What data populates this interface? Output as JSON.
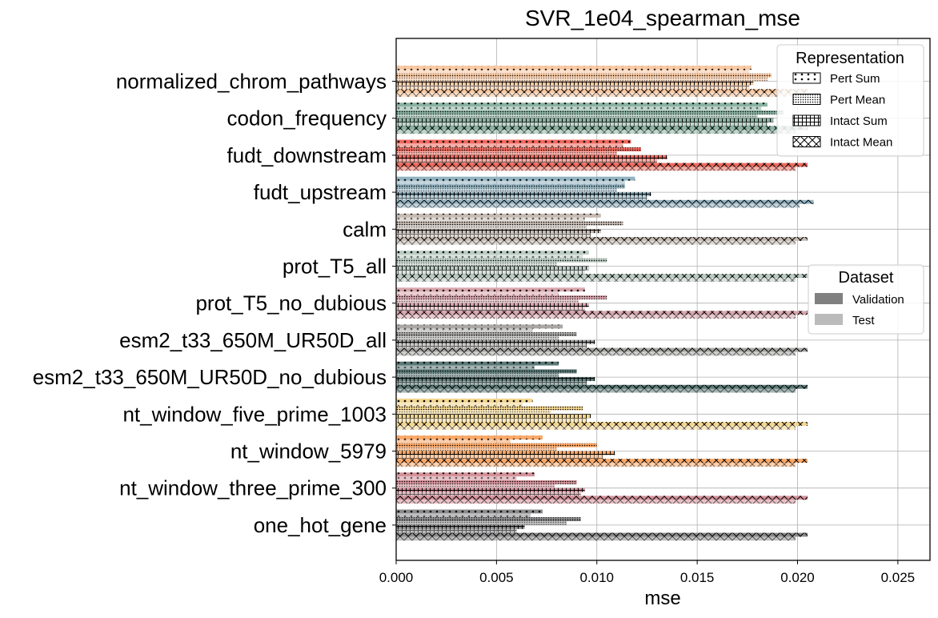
{
  "chart_data": {
    "type": "bar",
    "orientation": "horizontal",
    "title": "SVR_1e04_spearman_mse",
    "xlabel": "mse",
    "ylabel": "",
    "xlim": [
      0,
      0.0266
    ],
    "xticks": [
      "0.000",
      "0.005",
      "0.010",
      "0.015",
      "0.020",
      "0.025"
    ],
    "grid": true,
    "categories": [
      "normalized_chrom_pathways",
      "codon_frequency",
      "fudt_downstream",
      "fudt_upstream",
      "calm",
      "prot_T5_all",
      "prot_T5_no_dubious",
      "esm2_t33_650M_UR50D_all",
      "esm2_t33_650M_UR50D_no_dubious",
      "nt_window_five_prime_1003",
      "nt_window_5979",
      "nt_window_three_prime_300",
      "one_hot_gene"
    ],
    "category_colors": [
      "#f9c9a3",
      "#8ab3a2",
      "#ef6b5f",
      "#92b3c1",
      "#c6bbb3",
      "#b9cbc2",
      "#d8a5ad",
      "#a8a7a5",
      "#5b7a78",
      "#f3d690",
      "#fba867",
      "#d4919a",
      "#8c8a8d"
    ],
    "legend_representation": {
      "title": "Representation",
      "position": "top-right",
      "entries": [
        {
          "name": "Pert Sum",
          "hatch": "dots"
        },
        {
          "name": "Pert Mean",
          "hatch": "dense-dots"
        },
        {
          "name": "Intact Sum",
          "hatch": "grid"
        },
        {
          "name": "Intact Mean",
          "hatch": "crosshatch"
        }
      ]
    },
    "legend_dataset": {
      "title": "Dataset",
      "position": "center-right",
      "entries": [
        {
          "name": "Validation",
          "color": "#808080"
        },
        {
          "name": "Test",
          "color": "#bbbbbb"
        }
      ]
    },
    "series": [
      {
        "representation": "Pert Sum",
        "dataset": "Validation",
        "values": [
          0.0177,
          0.0185,
          0.0117,
          0.0119,
          0.0102,
          0.0096,
          0.0094,
          0.0083,
          0.0081,
          0.0068,
          0.0073,
          0.0069,
          0.0073
        ]
      },
      {
        "representation": "Pert Sum",
        "dataset": "Test",
        "values": [
          0.0176,
          0.0182,
          0.0113,
          0.0114,
          0.0094,
          0.0093,
          0.0081,
          0.0068,
          0.0069,
          0.0063,
          0.0057,
          0.006,
          0.0067
        ]
      },
      {
        "representation": "Pert Mean",
        "dataset": "Validation",
        "values": [
          0.0187,
          0.0193,
          0.0122,
          0.0114,
          0.0113,
          0.0105,
          0.0105,
          0.009,
          0.009,
          0.0093,
          0.01,
          0.009,
          0.0092
        ]
      },
      {
        "representation": "Pert Mean",
        "dataset": "Test",
        "values": [
          0.0185,
          0.018,
          0.011,
          0.011,
          0.0095,
          0.008,
          0.0091,
          0.0081,
          0.0081,
          0.0077,
          0.008,
          0.0079,
          0.0085
        ]
      },
      {
        "representation": "Intact Sum",
        "dataset": "Validation",
        "values": [
          0.0178,
          0.0188,
          0.0135,
          0.0127,
          0.0102,
          0.0096,
          0.0096,
          0.0099,
          0.0099,
          0.0097,
          0.0109,
          0.0094,
          0.0064
        ]
      },
      {
        "representation": "Intact Sum",
        "dataset": "Test",
        "values": [
          0.0176,
          0.0185,
          0.013,
          0.0125,
          0.0097,
          0.0094,
          0.0094,
          0.0095,
          0.0095,
          0.0095,
          0.0103,
          0.0092,
          0.006
        ]
      },
      {
        "representation": "Intact Mean",
        "dataset": "Validation",
        "values": [
          0.0205,
          0.0205,
          0.0205,
          0.0208,
          0.0205,
          0.0205,
          0.0205,
          0.0205,
          0.0205,
          0.0205,
          0.0205,
          0.0205,
          0.0205
        ]
      },
      {
        "representation": "Intact Mean",
        "dataset": "Test",
        "values": [
          0.0199,
          0.0199,
          0.0199,
          0.0201,
          0.0199,
          0.0199,
          0.0199,
          0.0199,
          0.0199,
          0.0199,
          0.0199,
          0.0199,
          0.0199
        ]
      }
    ]
  }
}
